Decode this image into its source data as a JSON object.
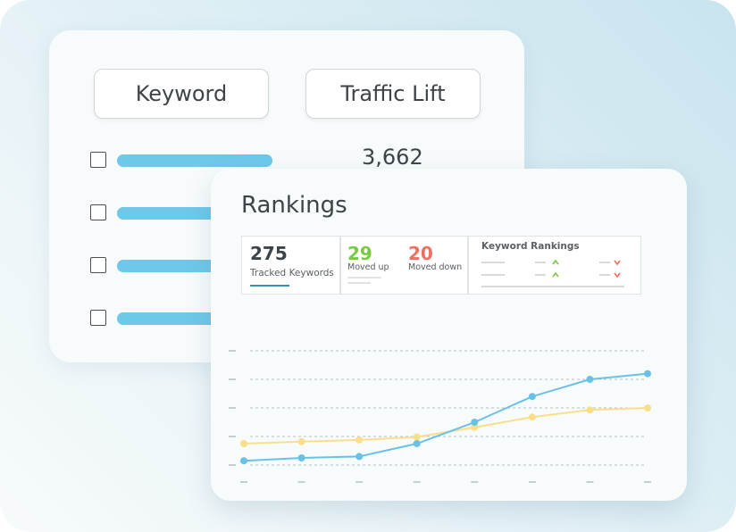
{
  "table": {
    "keyword_label": "Keyword",
    "traffic_lift_label": "Traffic Lift",
    "first_value": "3,662",
    "row_count": 4
  },
  "rankings": {
    "title": "Rankings",
    "tracked": {
      "value": "275",
      "label": "Tracked Keywords"
    },
    "moved_up": {
      "value": "29",
      "label": "Moved up",
      "color": "#7ac943"
    },
    "moved_down": {
      "value": "20",
      "label": "Moved down",
      "color": "#ee6f63"
    },
    "keyword_rankings_label": "Keyword Rankings",
    "up_color": "#7ac943",
    "down_color": "#ee6f63",
    "accent": "#3a8db7"
  },
  "chart_data": {
    "type": "line",
    "grid": true,
    "x": [
      1,
      2,
      3,
      4,
      5,
      6,
      7,
      8
    ],
    "ylim": [
      0,
      5
    ],
    "series": [
      {
        "color": "#68c2e6",
        "values": [
          0.15,
          0.25,
          0.3,
          0.75,
          1.5,
          2.4,
          3.0,
          3.2
        ]
      },
      {
        "color": "#fadf8a",
        "values": [
          0.75,
          0.82,
          0.88,
          0.98,
          1.32,
          1.68,
          1.93,
          2.0
        ]
      }
    ]
  }
}
